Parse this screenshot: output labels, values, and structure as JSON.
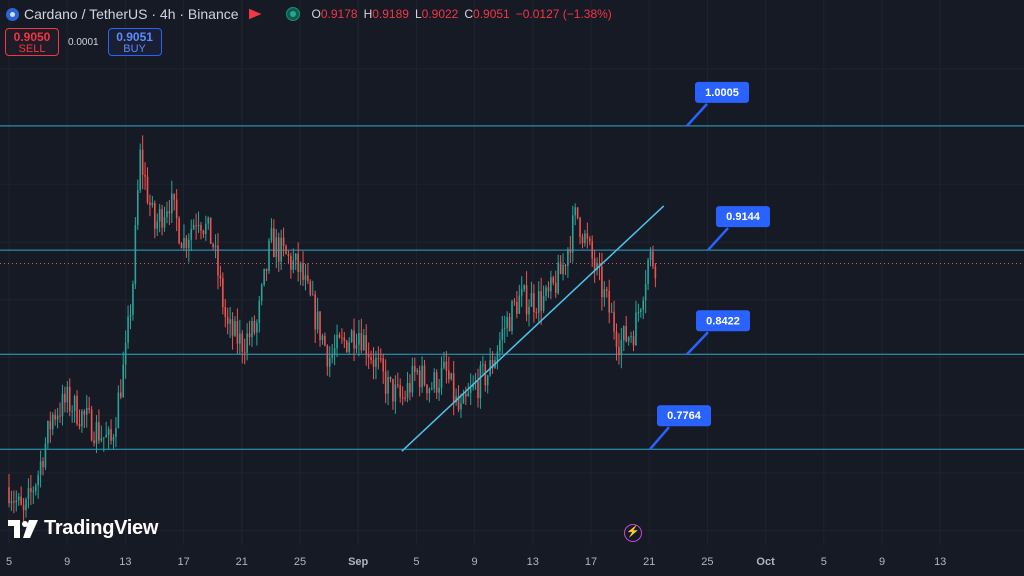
{
  "header": {
    "symbol": "Cardano / TetherUS · 4h · Binance",
    "ohlc": {
      "o_label": "O",
      "o": "0.9178",
      "h_label": "H",
      "h": "0.9189",
      "l_label": "L",
      "l": "0.9022",
      "c_label": "C",
      "c": "0.9051",
      "change": "−0.0127 (−1.38%)"
    }
  },
  "trade": {
    "sell_price": "0.9050",
    "sell_label": "SELL",
    "spread": "0.0001",
    "buy_price": "0.9051",
    "buy_label": "BUY"
  },
  "brand": "TradingView",
  "colors": {
    "background": "#161a25",
    "up": "#26a69a",
    "down": "#ef5350",
    "level_line": "#2aa8c7",
    "callout": "#2962ff",
    "trendline": "#4dc3e8"
  },
  "chart_data": {
    "type": "candlestick",
    "x_ticks": [
      "5",
      "9",
      "13",
      "17",
      "21",
      "25",
      "Sep",
      "5",
      "9",
      "13",
      "17",
      "21",
      "25",
      "Oct",
      "5",
      "9",
      "13"
    ],
    "ylim": [
      0.71,
      1.06
    ],
    "levels": [
      1.0005,
      0.9144,
      0.8422,
      0.7764
    ],
    "level_labels": [
      "1.0005",
      "0.9144",
      "0.8422",
      "0.7764"
    ],
    "current_price": 0.9051,
    "trendline": {
      "from": [
        "Sep 1",
        0.775
      ],
      "to": [
        "Sep 19",
        0.945
      ]
    },
    "anchors": [
      [
        "Aug 5",
        0.75
      ],
      [
        "Aug 6",
        0.73
      ],
      [
        "Aug 7",
        0.76
      ],
      [
        "Aug 8",
        0.8
      ],
      [
        "Aug 9",
        0.81
      ],
      [
        "Aug 10",
        0.8
      ],
      [
        "Aug 11",
        0.79
      ],
      [
        "Aug 12",
        0.78
      ],
      [
        "Aug 13",
        0.84
      ],
      [
        "Aug 13.5",
        0.89
      ],
      [
        "Aug 14",
        0.98
      ],
      [
        "Aug 15",
        0.93
      ],
      [
        "Aug 16",
        0.95
      ],
      [
        "Aug 17",
        0.92
      ],
      [
        "Aug 18",
        0.94
      ],
      [
        "Aug 19",
        0.92
      ],
      [
        "Aug 20",
        0.86
      ],
      [
        "Aug 21",
        0.85
      ],
      [
        "Aug 22",
        0.86
      ],
      [
        "Aug 23",
        0.92
      ],
      [
        "Aug 24",
        0.91
      ],
      [
        "Aug 25",
        0.9
      ],
      [
        "Aug 26",
        0.87
      ],
      [
        "Aug 27",
        0.84
      ],
      [
        "Aug 28",
        0.85
      ],
      [
        "Aug 29",
        0.86
      ],
      [
        "Aug 30",
        0.84
      ],
      [
        "Aug 31",
        0.82
      ],
      [
        "Sep 1",
        0.81
      ],
      [
        "Sep 2",
        0.83
      ],
      [
        "Sep 3",
        0.82
      ],
      [
        "Sep 4",
        0.83
      ],
      [
        "Sep 5",
        0.8
      ],
      [
        "Sep 6",
        0.82
      ],
      [
        "Sep 7",
        0.83
      ],
      [
        "Sep 8",
        0.86
      ],
      [
        "Sep 9",
        0.88
      ],
      [
        "Sep 10",
        0.88
      ],
      [
        "Sep 11",
        0.88
      ],
      [
        "Sep 12",
        0.9
      ],
      [
        "Sep 13",
        0.94
      ],
      [
        "Sep 14",
        0.91
      ],
      [
        "Sep 15",
        0.88
      ],
      [
        "Sep 16",
        0.85
      ],
      [
        "Sep 17",
        0.86
      ],
      [
        "Sep 18",
        0.91
      ],
      [
        "Sep 18.5",
        0.905
      ]
    ]
  }
}
